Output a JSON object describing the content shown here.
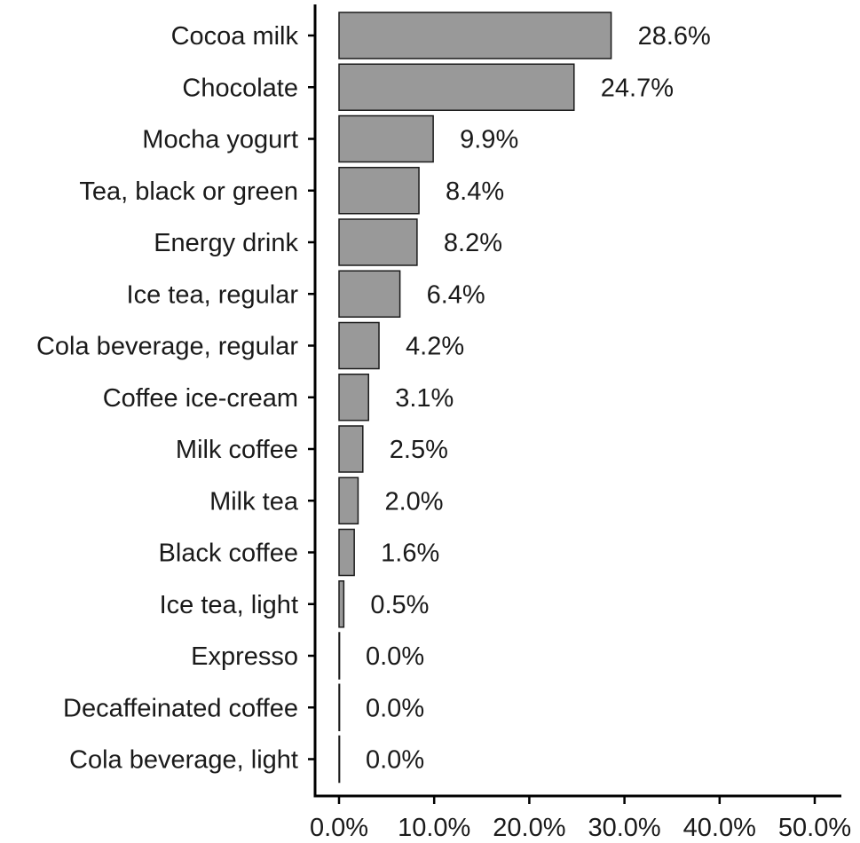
{
  "chart_data": {
    "type": "bar",
    "orientation": "horizontal",
    "title": "",
    "xlabel": "",
    "ylabel": "",
    "categories": [
      "Cocoa milk",
      "Chocolate",
      "Mocha yogurt",
      "Tea, black or green",
      "Energy drink",
      "Ice tea, regular",
      "Cola beverage, regular",
      "Coffee ice-cream",
      "Milk coffee",
      "Milk tea",
      "Black coffee",
      "Ice tea, light",
      "Expresso",
      "Decaffeinated coffee",
      "Cola beverage, light"
    ],
    "values": [
      28.6,
      24.7,
      9.9,
      8.4,
      8.2,
      6.4,
      4.2,
      3.1,
      2.5,
      2.0,
      1.6,
      0.5,
      0.0,
      0.0,
      0.0
    ],
    "value_labels": [
      "28.6%",
      "24.7%",
      "9.9%",
      "8.4%",
      "8.2%",
      "6.4%",
      "4.2%",
      "3.1%",
      "2.5%",
      "2.0%",
      "1.6%",
      "0.5%",
      "0.0%",
      "0.0%",
      "0.0%"
    ],
    "xlim": [
      0,
      50
    ],
    "x_ticks": [
      0,
      10,
      20,
      30,
      40,
      50
    ],
    "x_tick_labels": [
      "0.0%",
      "10.0%",
      "20.0%",
      "30.0%",
      "40.0%",
      "50.0%"
    ],
    "grid": false,
    "legend": "none",
    "bar_color": "#999999",
    "bar_outline_color": "#1a1a1a"
  }
}
